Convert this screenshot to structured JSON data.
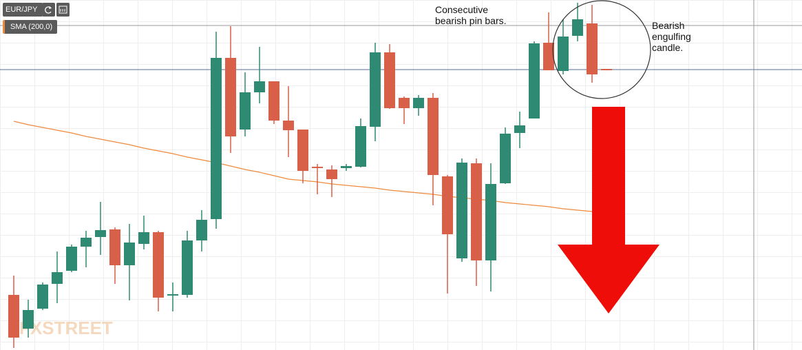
{
  "chart_data": {
    "type": "candlestick",
    "symbol": "EUR/JPY",
    "watermark": "FXSTREET",
    "ylim": [
      0,
      508
    ],
    "up_color": "#2f8a74",
    "down_color": "#d85f48",
    "open": [
      80,
      31,
      60,
      96,
      115,
      150,
      164,
      175,
      123,
      154,
      171,
      79,
      80,
      159,
      190,
      424,
      320,
      374,
      390,
      333,
      320,
      266,
      262,
      264,
      266,
      324,
      432,
      366,
      351,
      366,
      252,
      133,
      271,
      130,
      242,
      315,
      336,
      446,
      405,
      456,
      474,
      408
    ],
    "high": [
      108,
      73,
      98,
      143,
      153,
      173,
      215,
      178,
      183,
      195,
      173,
      98,
      173,
      203,
      462,
      470,
      403,
      440,
      390,
      383,
      320,
      270,
      268,
      270,
      336,
      446,
      444,
      368,
      370,
      373,
      254,
      278,
      278,
      271,
      323,
      346,
      448,
      490,
      480,
      504,
      501,
      408
    ],
    "low": [
      3,
      18,
      58,
      68,
      113,
      120,
      138,
      96,
      72,
      146,
      56,
      56,
      76,
      143,
      176,
      286,
      310,
      358,
      328,
      280,
      242,
      226,
      222,
      260,
      265,
      303,
      350,
      328,
      340,
      210,
      82,
      128,
      93,
      85,
      241,
      293,
      336,
      406,
      400,
      448,
      388,
      406
    ],
    "close": [
      18,
      58,
      95,
      113,
      150,
      163,
      174,
      123,
      156,
      171,
      76,
      81,
      159,
      189,
      424,
      310,
      374,
      390,
      333,
      319,
      260,
      264,
      248,
      267,
      325,
      432,
      351,
      351,
      366,
      254,
      168,
      272,
      130,
      241,
      314,
      326,
      445,
      406,
      455,
      480,
      400,
      406
    ],
    "indicator": {
      "name": "SMA (200,0)",
      "color": "#ef8a3c",
      "values": [
        332,
        327,
        323,
        319,
        315,
        310,
        306,
        302,
        298,
        293,
        289,
        285,
        280,
        276,
        272,
        267,
        262,
        258,
        253,
        248,
        246,
        244,
        241,
        239,
        237,
        235,
        232,
        230,
        228,
        226,
        223,
        221,
        219,
        217,
        214,
        212,
        210,
        208,
        205,
        203,
        201,
        null
      ]
    },
    "price_lines": [
      {
        "value": 471,
        "color": "#9a9a9a"
      },
      {
        "value": 407,
        "color": "#5b6b95"
      }
    ],
    "annotations": [
      "Consecutive bearish pin bars.",
      "Bearish engulfing candle."
    ]
  }
}
